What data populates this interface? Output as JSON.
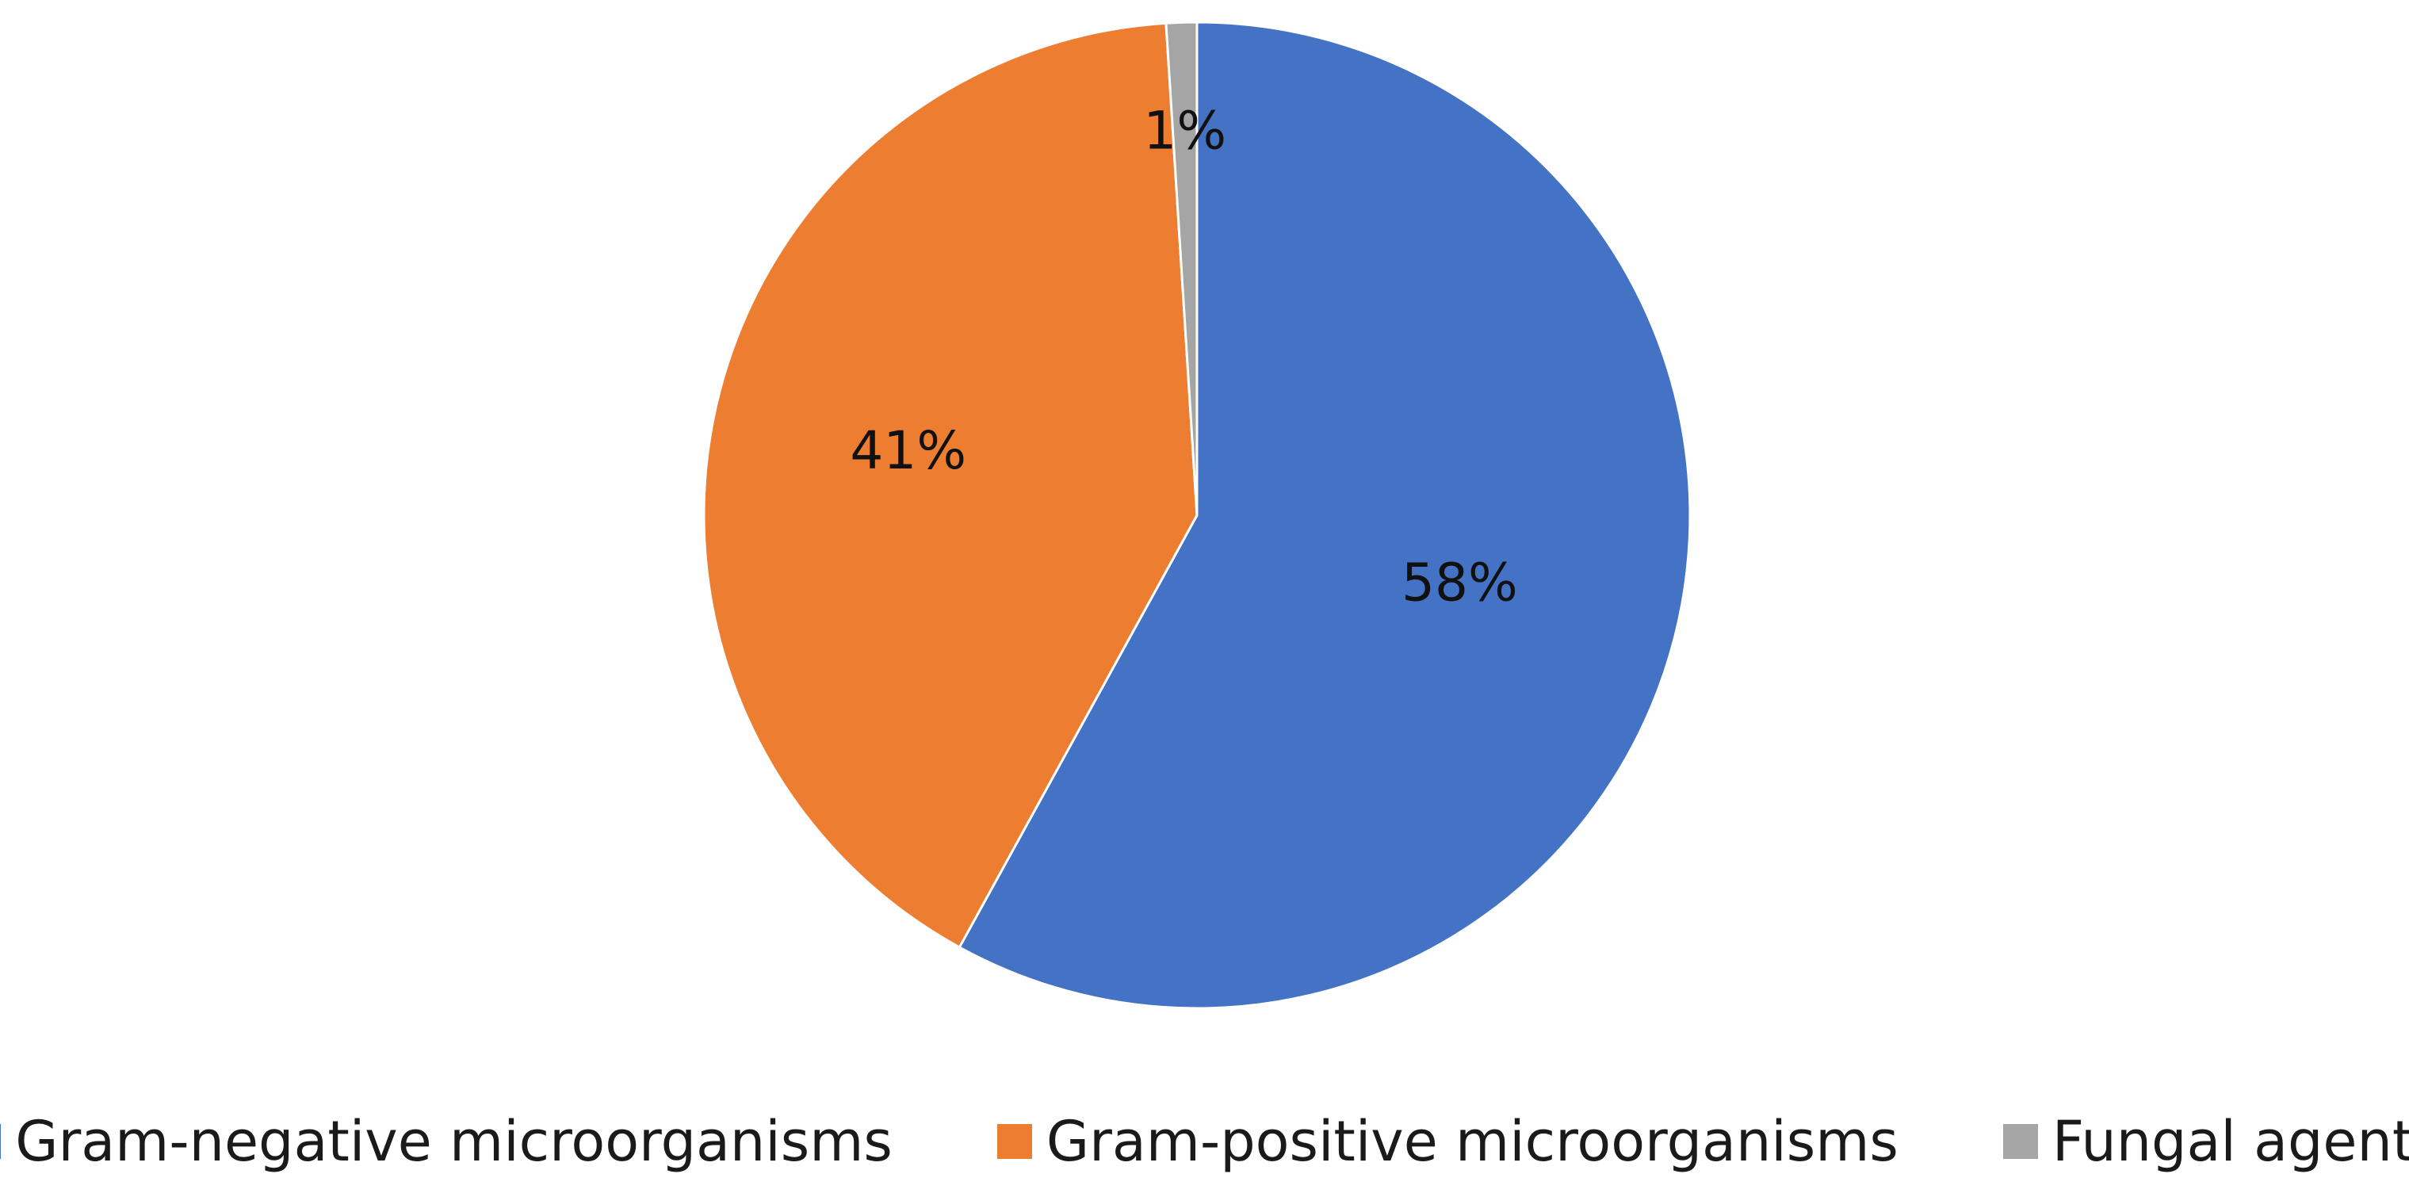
{
  "chart_data": {
    "type": "pie",
    "categories": [
      "Gram-negative microorganisms",
      "Gram-positive microorganisms",
      "Fungal agents"
    ],
    "values": [
      58,
      41,
      1
    ],
    "data_labels": [
      "58%",
      "41%",
      "1%"
    ],
    "colors": [
      "#4472C4",
      "#ED7D31",
      "#A5A5A5"
    ],
    "start_angle": "12 o'clock, clockwise",
    "legend_position": "bottom"
  }
}
